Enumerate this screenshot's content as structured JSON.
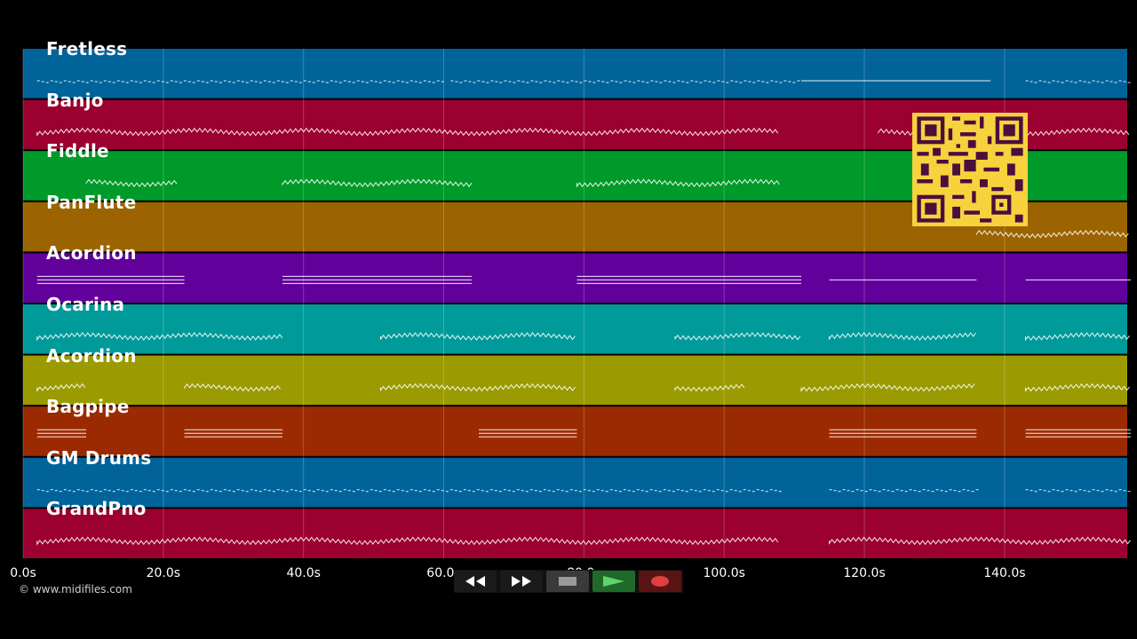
{
  "tracks": [
    {
      "name": "Fretless",
      "color": "#00649a"
    },
    {
      "name": "Banjo",
      "color": "#9b0030"
    },
    {
      "name": "Fiddle",
      "color": "#009a2a"
    },
    {
      "name": "PanFlute",
      "color": "#9b6400"
    },
    {
      "name": "Acordion",
      "color": "#62009b"
    },
    {
      "name": "Ocarina",
      "color": "#009a9a"
    },
    {
      "name": "Acordion",
      "color": "#9b9a00"
    },
    {
      "name": "Bagpipe",
      "color": "#9b2a00"
    },
    {
      "name": "GM Drums",
      "color": "#00649a"
    },
    {
      "name": "GrandPno",
      "color": "#9b0030"
    }
  ],
  "time_axis": {
    "ticks": [
      "0.0s",
      "20.0s",
      "40.0s",
      "60.0s",
      "80.0s",
      "100.0s",
      "120.0s",
      "140.0s"
    ],
    "tick_values": [
      0,
      20,
      40,
      60,
      80,
      100,
      120,
      140
    ],
    "max_seconds": 157.5
  },
  "copyright": "© www.midifiles.com",
  "transport": [
    {
      "name": "rewind-icon",
      "color": "#1a1a1a"
    },
    {
      "name": "fast-forward-icon",
      "color": "#1a1a1a"
    },
    {
      "name": "stop-icon",
      "color": "#3a3a3a"
    },
    {
      "name": "play-icon",
      "color": "#1f6a2a"
    },
    {
      "name": "record-icon",
      "color": "#5a1414"
    }
  ],
  "note_pattern": [
    [
      [
        2,
        60,
        "dots"
      ],
      [
        61,
        111,
        "dots"
      ],
      [
        111,
        138,
        "line"
      ],
      [
        143,
        158,
        "dots"
      ]
    ],
    [
      [
        2,
        108,
        "zig"
      ],
      [
        122,
        158,
        "zig"
      ]
    ],
    [
      [
        9,
        22,
        "zig"
      ],
      [
        37,
        64,
        "zig"
      ],
      [
        79,
        108,
        "zig"
      ]
    ],
    [
      [
        136,
        158,
        "zig"
      ]
    ],
    [
      [
        2,
        23,
        "bars"
      ],
      [
        37,
        64,
        "bars"
      ],
      [
        79,
        111,
        "bars"
      ],
      [
        115,
        136,
        "line"
      ],
      [
        143,
        158,
        "line"
      ]
    ],
    [
      [
        2,
        37,
        "zig"
      ],
      [
        51,
        79,
        "zig"
      ],
      [
        93,
        111,
        "zig"
      ],
      [
        115,
        136,
        "zig"
      ],
      [
        143,
        158,
        "zig"
      ]
    ],
    [
      [
        2,
        9,
        "zig"
      ],
      [
        23,
        37,
        "zig"
      ],
      [
        51,
        79,
        "zig"
      ],
      [
        93,
        103,
        "zig"
      ],
      [
        111,
        136,
        "zig"
      ],
      [
        143,
        158,
        "zig"
      ]
    ],
    [
      [
        2,
        9,
        "bars"
      ],
      [
        23,
        37,
        "bars"
      ],
      [
        65,
        79,
        "bars"
      ],
      [
        115,
        136,
        "bars"
      ],
      [
        143,
        158,
        "bars"
      ]
    ],
    [
      [
        2,
        108,
        "dots"
      ],
      [
        115,
        136,
        "dots"
      ],
      [
        143,
        158,
        "dots"
      ]
    ],
    [
      [
        2,
        108,
        "zig"
      ],
      [
        115,
        158,
        "zig"
      ]
    ]
  ]
}
